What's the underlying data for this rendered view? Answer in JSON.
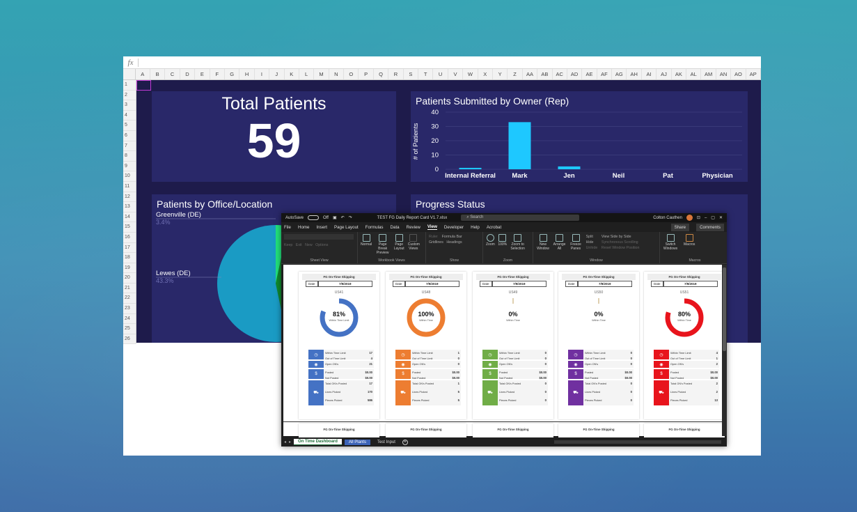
{
  "formula_bar": {
    "fx": "fx"
  },
  "columns": [
    "A",
    "B",
    "C",
    "D",
    "E",
    "F",
    "G",
    "H",
    "I",
    "J",
    "K",
    "L",
    "M",
    "N",
    "O",
    "P",
    "Q",
    "R",
    "S",
    "T",
    "U",
    "V",
    "W",
    "X",
    "Y",
    "Z",
    "AA",
    "AB",
    "AC",
    "AD",
    "AE",
    "AF",
    "AG",
    "AH",
    "AI",
    "AJ",
    "AK",
    "AL",
    "AM",
    "AN",
    "AO",
    "AP"
  ],
  "rows": [
    "1",
    "2",
    "3",
    "4",
    "5",
    "6",
    "7",
    "8",
    "9",
    "10",
    "11",
    "12",
    "13",
    "14",
    "15",
    "16",
    "17",
    "18",
    "19",
    "20",
    "21",
    "22",
    "23",
    "24",
    "25",
    "26"
  ],
  "total_patients": {
    "title": "Total Patients",
    "value": "59"
  },
  "owner_chart": {
    "chart_data": {
      "type": "bar",
      "title": "Patients Submitted by Owner (Rep)",
      "ylabel": "# of Patients",
      "categories": [
        "Internal Referral",
        "Mark",
        "Jen",
        "Neil",
        "Pat",
        "Physician"
      ],
      "values": [
        1,
        33,
        2,
        0,
        0,
        0
      ],
      "ylim": [
        0,
        40
      ],
      "yticks": [
        "40",
        "30",
        "20",
        "10",
        "0"
      ],
      "color": "#1ec8ff"
    }
  },
  "office_chart": {
    "chart_data": {
      "type": "pie",
      "title": "Patients by Office/Location",
      "slices": [
        {
          "label": "Greenville (DE)",
          "pct_label": "3.4%",
          "value": 3.4,
          "color": "#22e07a"
        },
        {
          "label": "Lewes (DE)",
          "pct_label": "43.3%",
          "value": 43.3,
          "color": "#0f8a2e"
        },
        {
          "label": "",
          "pct_label": "",
          "value": 53.3,
          "color": "#1a9bc4"
        }
      ]
    }
  },
  "progress": {
    "title": "Progress Status"
  },
  "excel": {
    "titlebar": {
      "autosave": "AutoSave",
      "toggle": "Off",
      "filename": "TEST FG Daily Report Card V1.7.xlsx",
      "search": "Search",
      "user": "Colton Cauthen"
    },
    "menu": [
      "File",
      "Home",
      "Insert",
      "Page Layout",
      "Formulas",
      "Data",
      "Review",
      "View",
      "Developer",
      "Help",
      "Acrobat"
    ],
    "active_menu": "View",
    "share": "Share",
    "comments": "Comments",
    "ribbon": {
      "sheet_view": {
        "name": "Sheet View",
        "l1": "Keep",
        "l2": "Exit",
        "l3": "New",
        "l4": "Options"
      },
      "workbook_views": {
        "name": "Workbook Views",
        "b1": "Normal",
        "b2": "Page Break Preview",
        "b3": "Page Layout",
        "b4": "Custom Views"
      },
      "show": {
        "name": "Show",
        "ruler": "Ruler",
        "formula_bar": "Formula Bar",
        "gridlines": "Gridlines",
        "headings": "Headings"
      },
      "zoom": {
        "name": "Zoom",
        "b1": "Zoom",
        "b2": "100%",
        "b3": "Zoom to Selection"
      },
      "window": {
        "name": "Window",
        "b1": "New Window",
        "b2": "Arrange All",
        "b3": "Freeze Panes",
        "split": "Split",
        "hide": "Hide",
        "unhide": "Unhide",
        "side": "View Side by Side",
        "sync": "Synchronous Scrolling",
        "reset": "Reset Window Position",
        "switch": "Switch Windows"
      },
      "macros": {
        "name": "Macros",
        "b1": "Macros"
      }
    },
    "cards": [
      {
        "title": "FG On-Time Shipping",
        "date_label": "Date",
        "date": "7/9/2019",
        "code": "US41",
        "pct": "81%",
        "pct_label": "Within Time Limit",
        "progress": 0.81,
        "color": "#4472c4",
        "within": "Within Time Limit",
        "within_v": "17",
        "out": "Out of Time Limit",
        "out_v": "4",
        "open": "Open ON's",
        "open_v": "21",
        "posted": "Posted",
        "posted_v": "$0.00",
        "nposted": "Not Posted",
        "nposted_v": "$0.00",
        "total": "Total ON's Posted",
        "total_v": "17",
        "lines": "Lines Picked",
        "lines_v": "170",
        "pieces": "Pieces Picked",
        "pieces_v": "586"
      },
      {
        "title": "FG On-Time Shipping",
        "date_label": "Date",
        "date": "7/9/2019",
        "code": "US48",
        "pct": "100%",
        "pct_label": "Within Time",
        "progress": 1.0,
        "color": "#ed7d31",
        "within": "Within Time Limit",
        "within_v": "1",
        "out": "Out of Time Limit",
        "out_v": "0",
        "open": "Open ON's",
        "open_v": "0",
        "posted": "Posted",
        "posted_v": "$0.00",
        "nposted": "Not Posted",
        "nposted_v": "$0.00",
        "total": "Total ON's Posted",
        "total_v": "1",
        "lines": "Lines Picked",
        "lines_v": "5",
        "pieces": "Pieces Picked",
        "pieces_v": "5"
      },
      {
        "title": "FG On-Time Shipping",
        "date_label": "Date",
        "date": "7/9/2019",
        "code": "US49",
        "pct": "0%",
        "pct_label": "Within Time",
        "progress": 0,
        "color": "#70ad47",
        "within": "Within Time Limit",
        "within_v": "0",
        "out": "Out of Time Limit",
        "out_v": "0",
        "open": "Open ON's",
        "open_v": "0",
        "posted": "Posted",
        "posted_v": "$0.00",
        "nposted": "Not Posted",
        "nposted_v": "$0.00",
        "total": "Total ON's Posted",
        "total_v": "0",
        "lines": "Lines Picked",
        "lines_v": "0",
        "pieces": "Pieces Picked",
        "pieces_v": "0"
      },
      {
        "title": "FG On-Time Shipping",
        "date_label": "Date",
        "date": "7/9/2019",
        "code": "US50",
        "pct": "0%",
        "pct_label": "Within Time",
        "progress": 0,
        "color": "#7030a0",
        "within": "Within Time Limit",
        "within_v": "0",
        "out": "Out of Time Limit",
        "out_v": "0",
        "open": "Open ON's",
        "open_v": "0",
        "posted": "Posted",
        "posted_v": "$0.00",
        "nposted": "Not Posted",
        "nposted_v": "$0.00",
        "total": "Total ON's Posted",
        "total_v": "0",
        "lines": "Lines Picked",
        "lines_v": "0",
        "pieces": "Pieces Picked",
        "pieces_v": "0"
      },
      {
        "title": "FG On-Time Shipping",
        "date_label": "Date",
        "date": "7/9/2019",
        "code": "US51",
        "pct": "80%",
        "pct_label": "Within Time",
        "progress": 0.8,
        "color": "#e8141c",
        "within": "Within Time Limit",
        "within_v": "4",
        "out": "Out of Time Limit",
        "out_v": "1",
        "open": "Open ON's",
        "open_v": "2",
        "posted": "Posted",
        "posted_v": "$0.00",
        "nposted": "Not Posted",
        "nposted_v": "$0.00",
        "total": "Total ON's Posted",
        "total_v": "2",
        "lines": "Lines Picked",
        "lines_v": "2",
        "pieces": "Pieces Picked",
        "pieces_v": "13"
      }
    ],
    "tabs": [
      "On Time Dashboard",
      "All Plants",
      "Test Input"
    ]
  }
}
